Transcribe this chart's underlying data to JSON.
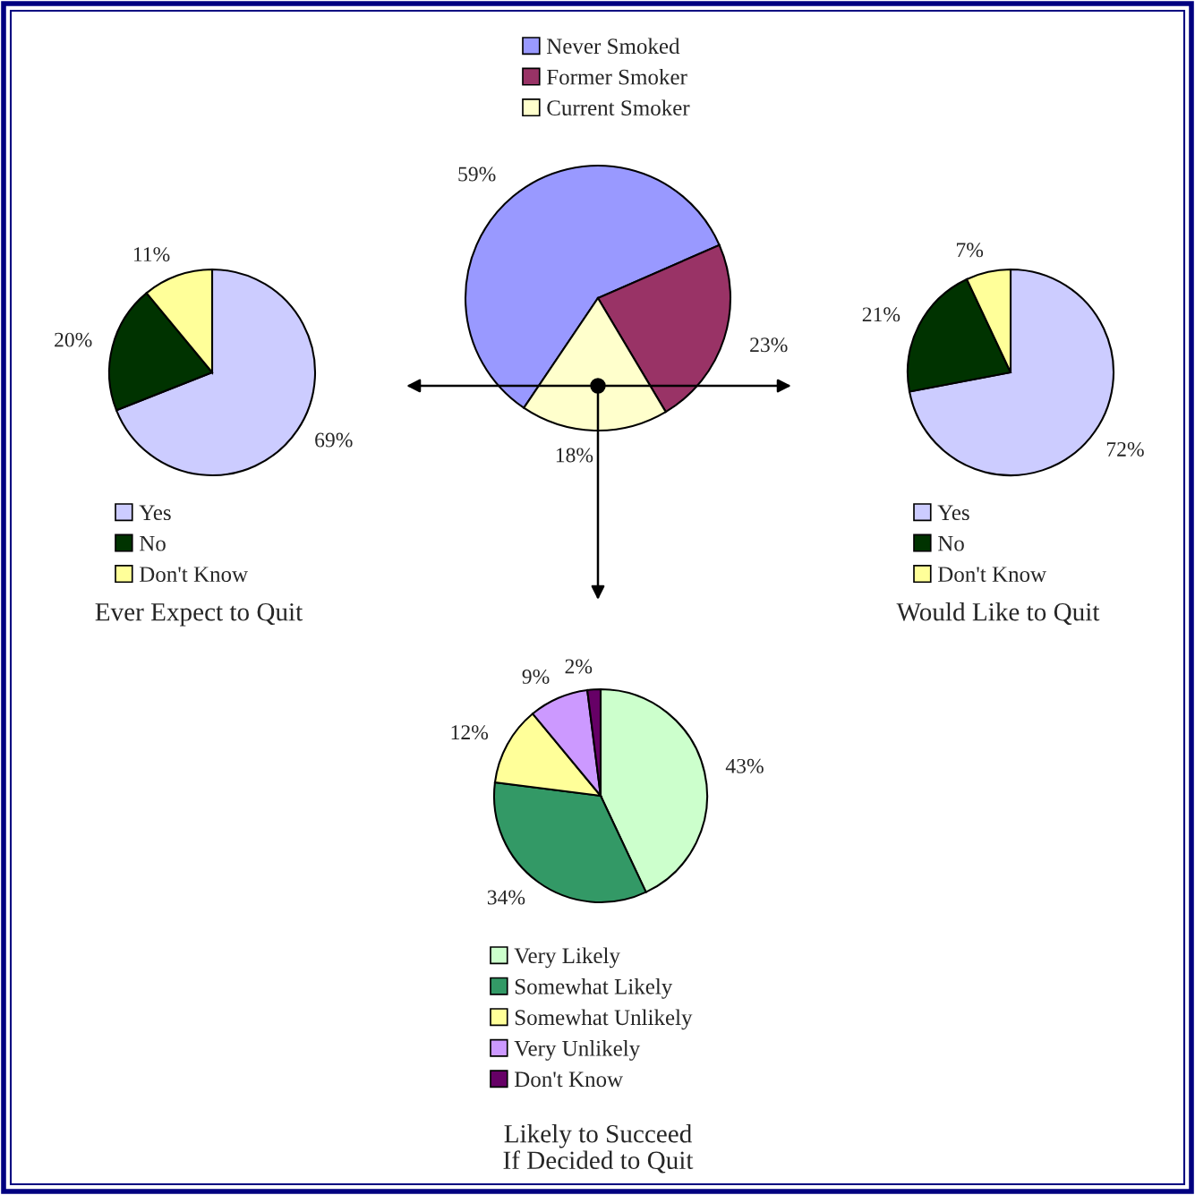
{
  "chart_data": [
    {
      "type": "pie",
      "categories": [
        "Never Smoked",
        "Former Smoker",
        "Current Smoker"
      ],
      "values": [
        59,
        23,
        18
      ],
      "value_labels": [
        "59%",
        "23%",
        "18%"
      ],
      "colors": [
        "#9999ff",
        "#993366",
        "#ffffcc"
      ],
      "legend": "top"
    },
    {
      "type": "pie",
      "title": "Ever Expect to Quit",
      "categories": [
        "Yes",
        "No",
        "Don't Know"
      ],
      "values": [
        69,
        20,
        11
      ],
      "value_labels": [
        "69%",
        "20%",
        "11%"
      ],
      "colors": [
        "#ccccff",
        "#003300",
        "#ffff99"
      ],
      "legend": "bottom"
    },
    {
      "type": "pie",
      "title": "Would Like to Quit",
      "categories": [
        "Yes",
        "No",
        "Don't Know"
      ],
      "values": [
        72,
        21,
        7
      ],
      "value_labels": [
        "72%",
        "21%",
        "7%"
      ],
      "colors": [
        "#ccccff",
        "#003300",
        "#ffff99"
      ],
      "legend": "bottom"
    },
    {
      "type": "pie",
      "title": "Likely to Succeed\nIf Decided to Quit",
      "categories": [
        "Very Likely",
        "Somewhat Likely",
        "Somewhat Unlikely",
        "Very Unlikely",
        "Don't Know"
      ],
      "values": [
        43,
        34,
        12,
        9,
        2
      ],
      "value_labels": [
        "43%",
        "34%",
        "12%",
        "9%",
        "2%"
      ],
      "colors": [
        "#ccffcc",
        "#339966",
        "#ffff99",
        "#cc99ff",
        "#660066"
      ],
      "legend": "bottom"
    }
  ]
}
